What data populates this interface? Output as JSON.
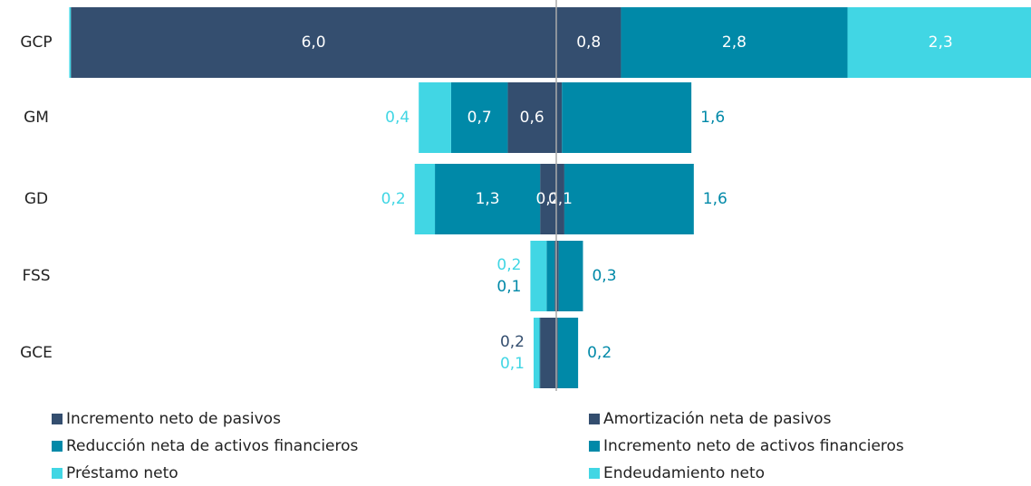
{
  "chart_data": {
    "type": "diverging-bar",
    "categories": [
      "GCP",
      "GM",
      "GD",
      "FSS",
      "GCE"
    ],
    "series": [
      {
        "name": "Incremento neto de pasivos",
        "color": "#344e6f",
        "side": "left",
        "values": [
          6.0,
          0.6,
          0.2,
          0.02,
          0.2
        ],
        "value_labels": [
          "6,0",
          "0,6",
          "0,2",
          null,
          "0,2"
        ]
      },
      {
        "name": "Reducción neta de activos financieros",
        "color": "#0089a8",
        "side": "left",
        "values": [
          0,
          0.7,
          1.3,
          0.1,
          0.01
        ],
        "value_labels": [
          null,
          "0,7",
          "1,3",
          "0,1",
          null
        ]
      },
      {
        "name": "Préstamo neto",
        "color": "#41d6e4",
        "side": "left",
        "values": [
          0.02,
          0.4,
          0.25,
          0.2,
          0.07
        ],
        "value_labels": [
          null,
          "0,4",
          "0,2",
          "0,2",
          "0,1"
        ]
      },
      {
        "name": "Amortización neta de pasivos",
        "color": "#344e6f",
        "side": "right",
        "values": [
          0.8,
          0.07,
          0.1,
          0.03,
          0.02
        ],
        "value_labels": [
          "0,8",
          null,
          "0,1",
          null,
          null
        ]
      },
      {
        "name": "Incremento neto de activos financieros",
        "color": "#0089a8",
        "side": "right",
        "values": [
          2.8,
          1.6,
          1.6,
          0.3,
          0.25
        ],
        "value_labels": [
          "2,8",
          "1,6",
          "1,6",
          "0,3",
          "0,2"
        ]
      },
      {
        "name": "Endeudamiento neto",
        "color": "#41d6e4",
        "side": "right",
        "values": [
          2.3,
          0,
          0,
          0,
          0
        ],
        "value_labels": [
          "2,3",
          null,
          null,
          null,
          null
        ]
      }
    ]
  }
}
